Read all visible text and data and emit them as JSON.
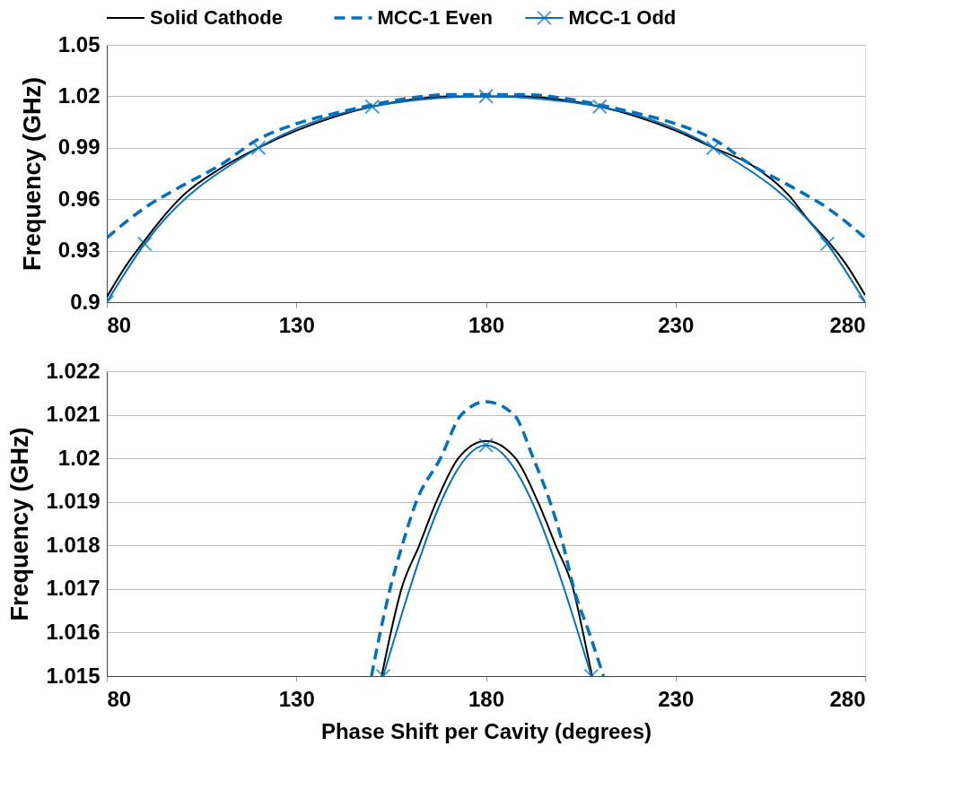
{
  "chart_data": [
    {
      "type": "line",
      "ylabel": "Frequency (GHz)",
      "xlim": [
        80,
        280
      ],
      "xticks": [
        80,
        130,
        180,
        230,
        280
      ],
      "ylim": [
        0.9,
        1.05
      ],
      "yticks": [
        0.9,
        0.93,
        0.96,
        0.99,
        1.02,
        1.05
      ],
      "grid": "y",
      "legend": "top",
      "series": [
        {
          "name": "Solid Cathode",
          "color": "#000000",
          "line_style": "solid",
          "marker": "none",
          "x": [
            80,
            85,
            90,
            95,
            100,
            110,
            120,
            130,
            140,
            150,
            160,
            170,
            180,
            190,
            200,
            210,
            220,
            230,
            240,
            250,
            260,
            265,
            270,
            275,
            280
          ],
          "values": [
            0.903,
            0.921,
            0.936,
            0.95,
            0.962,
            0.978,
            0.99,
            1.0,
            1.008,
            1.014,
            1.018,
            1.02,
            1.02,
            1.02,
            1.018,
            1.014,
            1.008,
            1.0,
            0.99,
            0.98,
            0.962,
            0.948,
            0.936,
            0.922,
            0.904
          ]
        },
        {
          "name": "MCC-1 Even",
          "color": "#0070c0",
          "line_style": "dashed",
          "marker": "none",
          "x": [
            80,
            90,
            100,
            110,
            120,
            130,
            140,
            150,
            160,
            170,
            180,
            190,
            200,
            210,
            220,
            230,
            240,
            250,
            260,
            270,
            280
          ],
          "values": [
            0.9375,
            0.955,
            0.968,
            0.98,
            0.995,
            1.004,
            1.01,
            1.015,
            1.019,
            1.021,
            1.021,
            1.021,
            1.019,
            1.015,
            1.01,
            1.004,
            0.995,
            0.98,
            0.968,
            0.955,
            0.9375
          ]
        },
        {
          "name": "MCC-1 Odd",
          "color": "#0070c0",
          "line_style": "solid",
          "marker": "cross",
          "x": [
            80,
            90,
            120,
            150,
            180,
            210,
            240,
            270,
            280
          ],
          "values": [
            0.9,
            0.934,
            0.99,
            1.014,
            1.02,
            1.014,
            0.99,
            0.934,
            0.9
          ]
        }
      ]
    },
    {
      "type": "line",
      "ylabel": "Frequency (GHz)",
      "xlabel": "Phase Shift per Cavity (degrees)",
      "xlim": [
        80,
        280
      ],
      "xticks": [
        80,
        130,
        180,
        230,
        280
      ],
      "ylim": [
        1.015,
        1.022
      ],
      "yticks": [
        1.015,
        1.016,
        1.017,
        1.018,
        1.019,
        1.02,
        1.021,
        1.022
      ],
      "grid": "y",
      "legend": false,
      "series": [
        {
          "color": "#000000",
          "line_style": "solid",
          "marker": "none",
          "x": [
            152.5,
            154.9,
            157.7,
            162.4,
            166.9,
            172.7,
            180,
            187.8,
            193.7,
            198.4,
            203.0,
            205.6,
            208.0
          ],
          "values": [
            1.015,
            1.016,
            1.017,
            1.018,
            1.019,
            1.02,
            1.0204,
            1.02,
            1.019,
            1.018,
            1.017,
            1.016,
            1.015
          ]
        },
        {
          "color": "#0070c0",
          "line_style": "dashed",
          "marker": "none",
          "x": [
            149.8,
            152.1,
            154.7,
            157.9,
            161.6,
            168.0,
            173.5,
            180,
            187.4,
            192.5,
            196.9,
            200.4,
            203.2,
            207.2,
            211.0
          ],
          "values": [
            1.015,
            1.016,
            1.017,
            1.018,
            1.019,
            1.02,
            1.021,
            1.0213,
            1.021,
            1.02,
            1.019,
            1.018,
            1.017,
            1.016,
            1.015
          ]
        },
        {
          "color": "#0070c0",
          "line_style": "solid",
          "marker": "cross",
          "x": [
            152.9,
            180,
            207.8
          ],
          "values": [
            1.015,
            1.0203,
            1.015
          ]
        }
      ]
    }
  ]
}
